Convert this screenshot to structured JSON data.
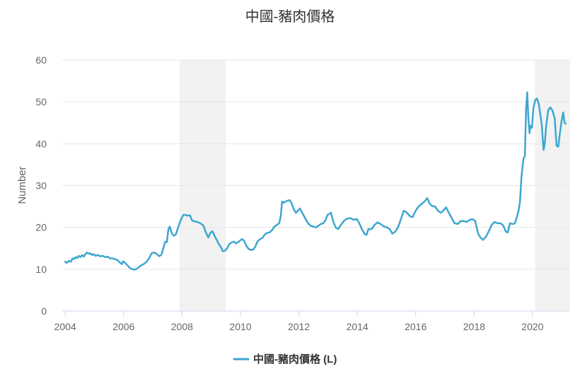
{
  "chart_data": {
    "type": "line",
    "title": "中國-豬肉價格",
    "ylabel": "Number",
    "ylim": [
      0,
      60
    ],
    "xlim": [
      "2003-11-25",
      "2021-04-15"
    ],
    "yticks": [
      0,
      10,
      20,
      30,
      40,
      50,
      60
    ],
    "xticks": [
      "2004",
      "2006",
      "2008",
      "2010",
      "2012",
      "2014",
      "2016",
      "2018",
      "2020"
    ],
    "grid": true,
    "legend": "bottom-center",
    "colors": {
      "line": "#3ea6d0",
      "shade": "#f2f2f2"
    },
    "shaded_ranges": [
      [
        "2007-12-01",
        "2009-06-30"
      ],
      [
        "2020-02-01",
        "2021-04-15"
      ]
    ],
    "x": [
      "2004-01-01",
      "2004-01-20",
      "2004-02-15",
      "2004-03-10",
      "2004-04-01",
      "2004-04-20",
      "2004-05-10",
      "2004-06-01",
      "2004-06-20",
      "2004-07-10",
      "2004-08-01",
      "2004-08-20",
      "2004-09-10",
      "2004-10-01",
      "2004-10-20",
      "2004-11-10",
      "2004-12-01",
      "2004-12-20",
      "2005-01-15",
      "2005-02-15",
      "2005-03-15",
      "2005-04-15",
      "2005-05-15",
      "2005-06-15",
      "2005-07-15",
      "2005-08-15",
      "2005-09-15",
      "2005-10-15",
      "2005-11-15",
      "2005-12-10",
      "2005-12-25",
      "2006-01-15",
      "2006-02-15",
      "2006-03-15",
      "2006-04-15",
      "2006-05-15",
      "2006-06-15",
      "2006-07-15",
      "2006-08-15",
      "2006-09-15",
      "2006-10-15",
      "2006-11-15",
      "2006-12-15",
      "2007-01-15",
      "2007-02-15",
      "2007-03-20",
      "2007-04-20",
      "2007-05-15",
      "2007-06-05",
      "2007-06-25",
      "2007-07-15",
      "2007-08-01",
      "2007-08-25",
      "2007-09-20",
      "2007-10-15",
      "2007-11-10",
      "2007-12-05",
      "2007-12-28",
      "2008-01-20",
      "2008-02-15",
      "2008-03-10",
      "2008-04-10",
      "2008-05-01",
      "2008-05-25",
      "2008-06-25",
      "2008-07-25",
      "2008-08-25",
      "2008-09-25",
      "2008-10-20",
      "2008-11-25",
      "2008-12-20",
      "2009-01-15",
      "2009-02-10",
      "2009-03-10",
      "2009-04-05",
      "2009-05-01",
      "2009-05-25",
      "2009-06-20",
      "2009-07-15",
      "2009-08-10",
      "2009-09-10",
      "2009-10-10",
      "2009-11-05",
      "2009-12-05",
      "2010-01-05",
      "2010-01-25",
      "2010-02-20",
      "2010-03-15",
      "2010-04-10",
      "2010-05-10",
      "2010-06-10",
      "2010-07-05",
      "2010-08-01",
      "2010-09-01",
      "2010-10-01",
      "2010-11-01",
      "2010-12-01",
      "2011-01-01",
      "2011-02-01",
      "2011-03-01",
      "2011-04-01",
      "2011-05-01",
      "2011-05-20",
      "2011-06-05",
      "2011-06-25",
      "2011-07-20",
      "2011-08-15",
      "2011-09-10",
      "2011-10-05",
      "2011-10-30",
      "2011-11-25",
      "2011-12-20",
      "2012-01-15",
      "2012-02-20",
      "2012-03-25",
      "2012-04-25",
      "2012-05-25",
      "2012-07-01",
      "2012-08-01",
      "2012-09-01",
      "2012-10-01",
      "2012-11-01",
      "2012-12-01",
      "2012-12-25",
      "2013-02-05",
      "2013-03-05",
      "2013-04-05",
      "2013-05-05",
      "2013-06-10",
      "2013-07-20",
      "2013-08-25",
      "2013-10-10",
      "2013-11-15",
      "2013-12-25",
      "2014-01-25",
      "2014-03-01",
      "2014-04-05",
      "2014-04-25",
      "2014-05-20",
      "2014-06-30",
      "2014-08-05",
      "2014-09-10",
      "2014-10-20",
      "2014-11-25",
      "2015-01-05",
      "2015-02-10",
      "2015-03-15",
      "2015-04-20",
      "2015-05-25",
      "2015-07-01",
      "2015-08-05",
      "2015-09-10",
      "2015-10-25",
      "2015-11-25",
      "2016-01-01",
      "2016-02-05",
      "2016-03-15",
      "2016-04-20",
      "2016-05-25",
      "2016-06-20",
      "2016-07-25",
      "2016-08-30",
      "2016-10-05",
      "2016-11-10",
      "2016-12-15",
      "2017-01-15",
      "2017-02-15",
      "2017-03-20",
      "2017-05-01",
      "2017-06-10",
      "2017-07-15",
      "2017-08-30",
      "2017-10-01",
      "2017-11-05",
      "2017-12-10",
      "2018-01-15",
      "2018-02-20",
      "2018-03-25",
      "2018-04-20",
      "2018-05-30",
      "2018-07-01",
      "2018-08-05",
      "2018-09-10",
      "2018-10-20",
      "2018-11-25",
      "2018-12-30",
      "2019-02-01",
      "2019-02-25",
      "2019-03-25",
      "2019-04-30",
      "2019-05-25",
      "2019-06-20",
      "2019-07-10",
      "2019-07-28",
      "2019-08-15",
      "2019-09-10",
      "2019-09-28",
      "2019-10-12",
      "2019-10-27",
      "2019-11-10",
      "2019-11-25",
      "2019-12-05",
      "2019-12-25",
      "2020-01-12",
      "2020-02-05",
      "2020-02-25",
      "2020-03-20",
      "2020-04-08",
      "2020-04-25",
      "2020-05-18",
      "2020-06-02",
      "2020-06-18",
      "2020-07-15",
      "2020-08-10",
      "2020-09-05",
      "2020-10-05",
      "2020-10-28",
      "2020-11-18",
      "2020-12-05",
      "2020-12-30",
      "2021-01-18",
      "2021-02-05",
      "2021-02-20"
    ],
    "series": [
      {
        "name": "中國-豬肉價格 (L)",
        "values": [
          11.8,
          11.5,
          12.0,
          11.8,
          12.6,
          12.4,
          12.9,
          12.7,
          13.2,
          12.9,
          13.4,
          13.0,
          13.6,
          14.0,
          13.7,
          13.8,
          13.4,
          13.6,
          13.2,
          13.4,
          13.1,
          13.2,
          12.9,
          13.0,
          12.6,
          12.6,
          12.4,
          12.2,
          11.6,
          11.2,
          11.9,
          11.6,
          11.0,
          10.4,
          10.0,
          9.9,
          10.1,
          10.6,
          11.0,
          11.3,
          11.8,
          12.6,
          13.8,
          14.0,
          13.7,
          13.1,
          13.5,
          15.2,
          16.6,
          16.5,
          19.6,
          20.2,
          18.6,
          18.0,
          18.3,
          19.8,
          21.2,
          22.3,
          23.0,
          23.0,
          22.8,
          22.9,
          21.8,
          21.5,
          21.4,
          21.2,
          20.9,
          20.4,
          19.0,
          17.6,
          18.7,
          19.1,
          18.0,
          17.0,
          16.0,
          15.3,
          14.3,
          14.4,
          14.9,
          15.9,
          16.4,
          16.6,
          16.2,
          16.5,
          17.0,
          17.2,
          16.7,
          15.6,
          14.9,
          14.6,
          14.7,
          15.4,
          16.6,
          17.2,
          17.5,
          18.3,
          18.7,
          18.8,
          19.4,
          20.2,
          20.6,
          21.0,
          22.8,
          26.2,
          25.9,
          26.2,
          26.4,
          26.5,
          25.6,
          24.3,
          23.5,
          24.0,
          24.5,
          23.2,
          22.0,
          21.0,
          20.4,
          20.2,
          20.0,
          20.4,
          20.8,
          21.0,
          21.8,
          23.0,
          23.5,
          21.5,
          20.0,
          19.6,
          20.6,
          21.6,
          22.1,
          22.2,
          21.8,
          22.0,
          21.0,
          19.5,
          18.4,
          18.2,
          19.6,
          19.6,
          20.6,
          21.2,
          20.8,
          20.3,
          20.0,
          19.6,
          18.5,
          19.0,
          20.0,
          22.0,
          24.0,
          23.6,
          22.6,
          22.5,
          24.0,
          25.0,
          25.6,
          26.2,
          27.0,
          25.8,
          25.1,
          25.0,
          24.0,
          23.5,
          24.1,
          24.8,
          23.6,
          22.5,
          21.0,
          20.8,
          21.5,
          21.5,
          21.3,
          21.8,
          22.0,
          21.5,
          18.5,
          17.5,
          17.0,
          17.8,
          19.0,
          20.5,
          21.3,
          21.0,
          21.0,
          20.5,
          19.0,
          18.8,
          21.0,
          20.8,
          21.0,
          22.5,
          24.0,
          26.0,
          32.0,
          36.5,
          37.0,
          48.0,
          52.3,
          46.0,
          42.5,
          44.3,
          43.8,
          48.5,
          50.5,
          50.8,
          49.5,
          47.0,
          44.5,
          38.5,
          40.0,
          44.0,
          48.0,
          48.7,
          48.0,
          46.0,
          39.5,
          39.3,
          42.0,
          45.5,
          47.5,
          45.0,
          44.8
        ]
      }
    ]
  }
}
